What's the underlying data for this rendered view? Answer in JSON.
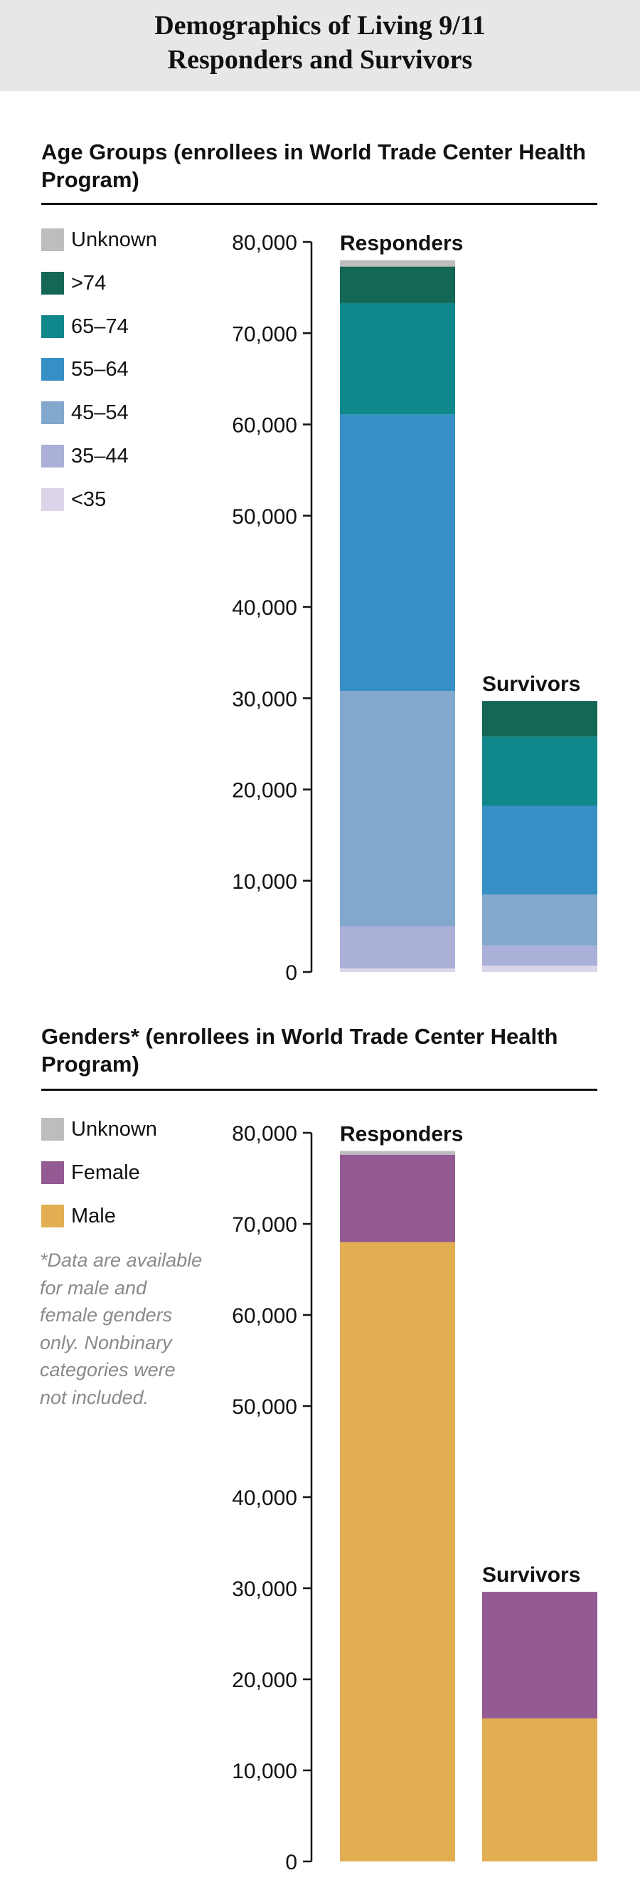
{
  "title": {
    "line1": "Demographics of Living 9/11",
    "line2": "Responders and Survivors"
  },
  "chart_data": [
    {
      "type": "bar",
      "stacked": true,
      "title": "Age Groups (enrollees in World Trade Center Health Program)",
      "categories": [
        "Responders",
        "Survivors"
      ],
      "series": [
        {
          "name": "<35",
          "color": "#dcd5ea",
          "values": [
            400,
            700
          ]
        },
        {
          "name": "35–44",
          "color": "#aab0d8",
          "values": [
            4600,
            2200
          ]
        },
        {
          "name": "45–54",
          "color": "#82a8cd",
          "values": [
            25800,
            5600
          ]
        },
        {
          "name": "55–64",
          "color": "#3690c6",
          "values": [
            30300,
            9700
          ]
        },
        {
          "name": "65–74",
          "color": "#10878b",
          "values": [
            12200,
            7600
          ]
        },
        {
          "name": ">74",
          "color": "#136754",
          "values": [
            4000,
            3900
          ]
        },
        {
          "name": "Unknown",
          "color": "#bdbdbd",
          "values": [
            700,
            0
          ]
        }
      ],
      "yticks": [
        "0",
        "10,000",
        "20,000",
        "30,000",
        "40,000",
        "50,000",
        "60,000",
        "70,000",
        "80,000"
      ],
      "ylim": [
        0,
        80000
      ],
      "xlabel": "",
      "ylabel": "",
      "grid": false,
      "legend": "left"
    },
    {
      "type": "bar",
      "stacked": true,
      "title": "Genders* (enrollees in World Trade Center Health Program)",
      "categories": [
        "Responders",
        "Survivors"
      ],
      "series": [
        {
          "name": "Male",
          "color": "#e2ae52",
          "values": [
            68000,
            15700
          ]
        },
        {
          "name": "Female",
          "color": "#935a93",
          "values": [
            9600,
            13900
          ]
        },
        {
          "name": "Unknown",
          "color": "#bdbdbd",
          "values": [
            400,
            0
          ]
        }
      ],
      "yticks": [
        "0",
        "10,000",
        "20,000",
        "30,000",
        "40,000",
        "50,000",
        "60,000",
        "70,000",
        "80,000"
      ],
      "ylim": [
        0,
        80000
      ],
      "xlabel": "",
      "ylabel": "",
      "grid": false,
      "legend": "left",
      "footnote": "*Data are available for male and female genders only. Nonbinary categories were not included."
    }
  ]
}
